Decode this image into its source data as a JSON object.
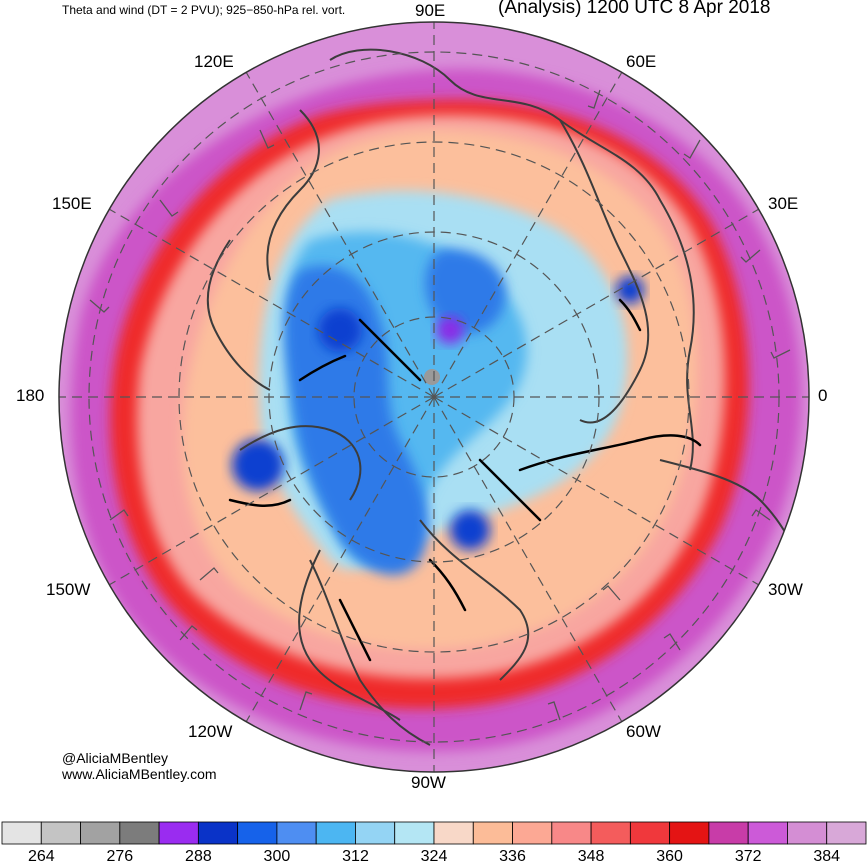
{
  "header": {
    "title_left": "Theta and wind (DT = 2 PVU); 925−850-hPa rel. vort.",
    "title_right": "(Analysis) 1200 UTC 8 Apr 2018"
  },
  "longitude_labels": {
    "lon_90e": "90E",
    "lon_120e": "120E",
    "lon_60e": "60E",
    "lon_150e": "150E",
    "lon_30e": "30E",
    "lon_180": "180",
    "lon_0": "0",
    "lon_150w": "150W",
    "lon_30w": "30W",
    "lon_120w": "120W",
    "lon_60w": "60W",
    "lon_90w": "90W"
  },
  "credits": {
    "handle": "@AliciaMBentley",
    "website": "www.AliciaMBentley.com"
  },
  "colorbar": {
    "colors": [
      "#e4e4e4",
      "#c4c4c4",
      "#a2a2a2",
      "#7c7c7c",
      "#9a2cf0",
      "#0a33c8",
      "#1662ea",
      "#4e8ef2",
      "#4cb6f2",
      "#94d4f4",
      "#b4e6f4",
      "#f8d8c8",
      "#fcbc98",
      "#fca894",
      "#f88888",
      "#f45c5c",
      "#f0383c",
      "#e41414",
      "#c83ca8",
      "#cc5ad8",
      "#d48ed4",
      "#d8a8d8"
    ],
    "tick_labels": [
      "264",
      "276",
      "288",
      "300",
      "312",
      "324",
      "336",
      "348",
      "360",
      "372",
      "384"
    ]
  },
  "map_colors": {
    "ocean_outer": "#d98fd9",
    "ring_magenta": "#cc55c8",
    "ring_red": "#ef2a2a",
    "warm_salmon": "#fcbf9c",
    "warm_pink": "#f8a6a0",
    "cold_light": "#a9dff3",
    "cold_mid": "#55b8f0",
    "cold_blue": "#2f7ae8",
    "cold_deep": "#0b3fd0",
    "purple": "#8a2ce6",
    "coast": "#3c3c3c",
    "vort": "#000000"
  }
}
